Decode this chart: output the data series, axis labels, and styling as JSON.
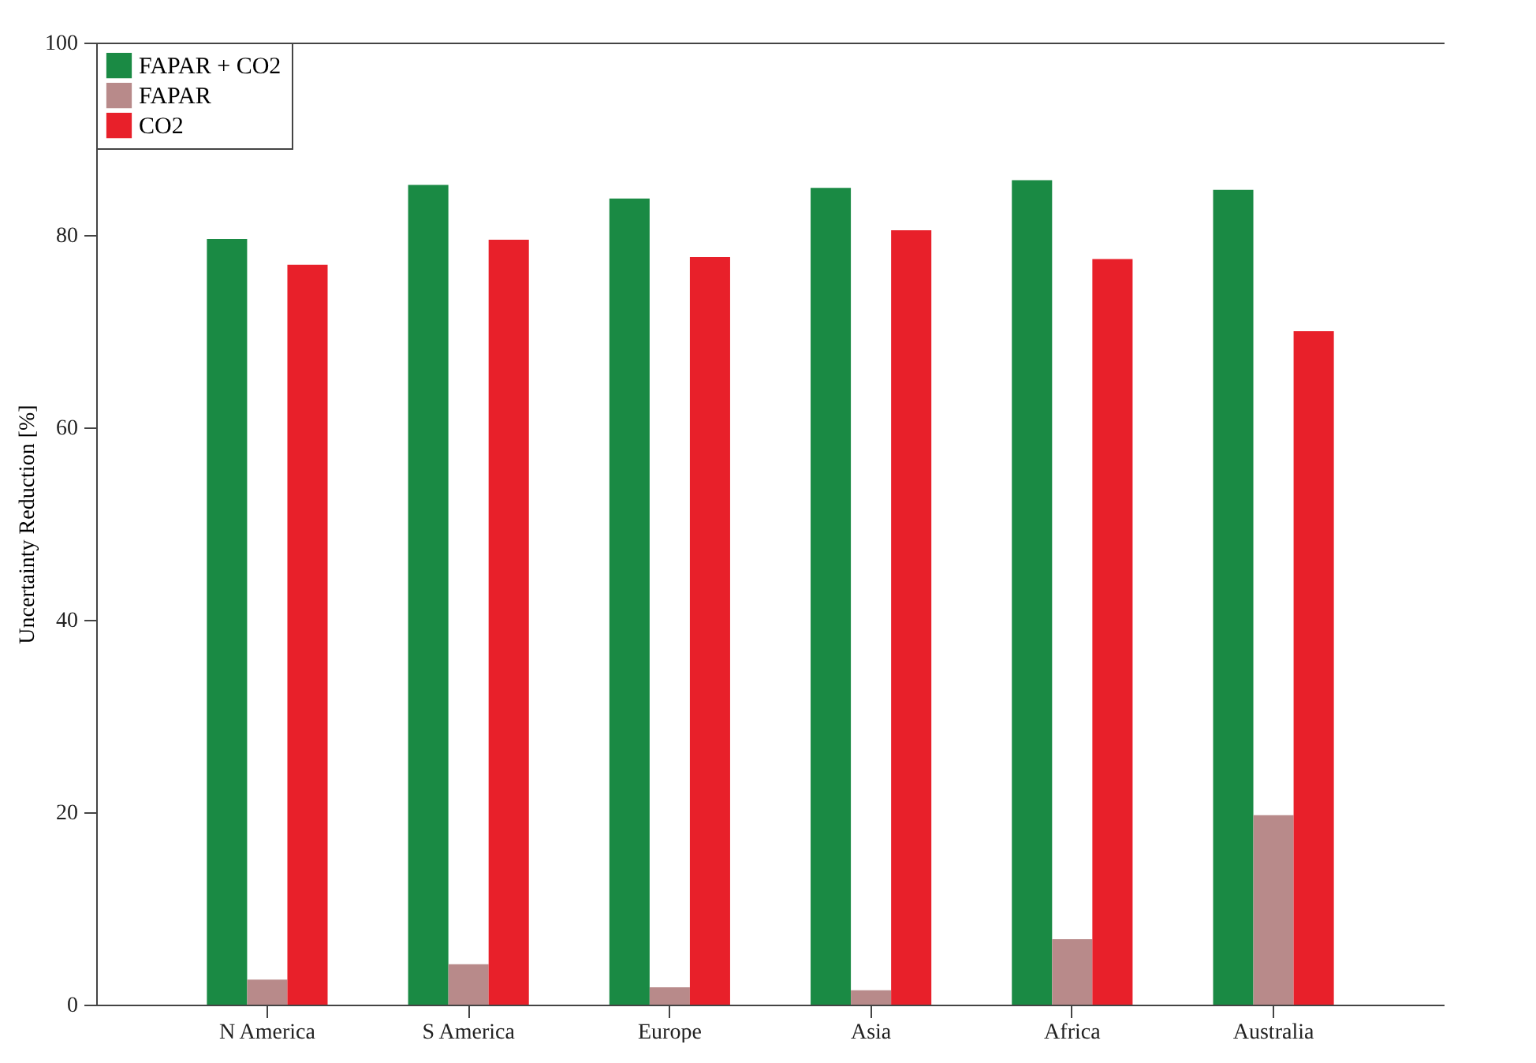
{
  "chart_data": {
    "type": "bar",
    "ylabel": "Uncertainty Reduction [%]",
    "categories": [
      "N America",
      "S America",
      "Europe",
      "Asia",
      "Africa",
      "Australia"
    ],
    "series": [
      {
        "name": "FAPAR + CO2",
        "color": "#1a8a44",
        "values": [
          79.6,
          85.2,
          83.8,
          84.9,
          85.7,
          84.7
        ]
      },
      {
        "name": "FAPAR",
        "color": "#b88a8a",
        "values": [
          2.6,
          4.2,
          1.8,
          1.5,
          6.8,
          19.7
        ]
      },
      {
        "name": "CO2",
        "color": "#e8202a",
        "values": [
          76.9,
          79.5,
          77.7,
          80.5,
          77.5,
          70.0
        ]
      }
    ],
    "ylim": [
      0,
      100
    ],
    "yticks": [
      0,
      20,
      40,
      60,
      80,
      100
    ],
    "grid": false,
    "legend": "top left"
  }
}
